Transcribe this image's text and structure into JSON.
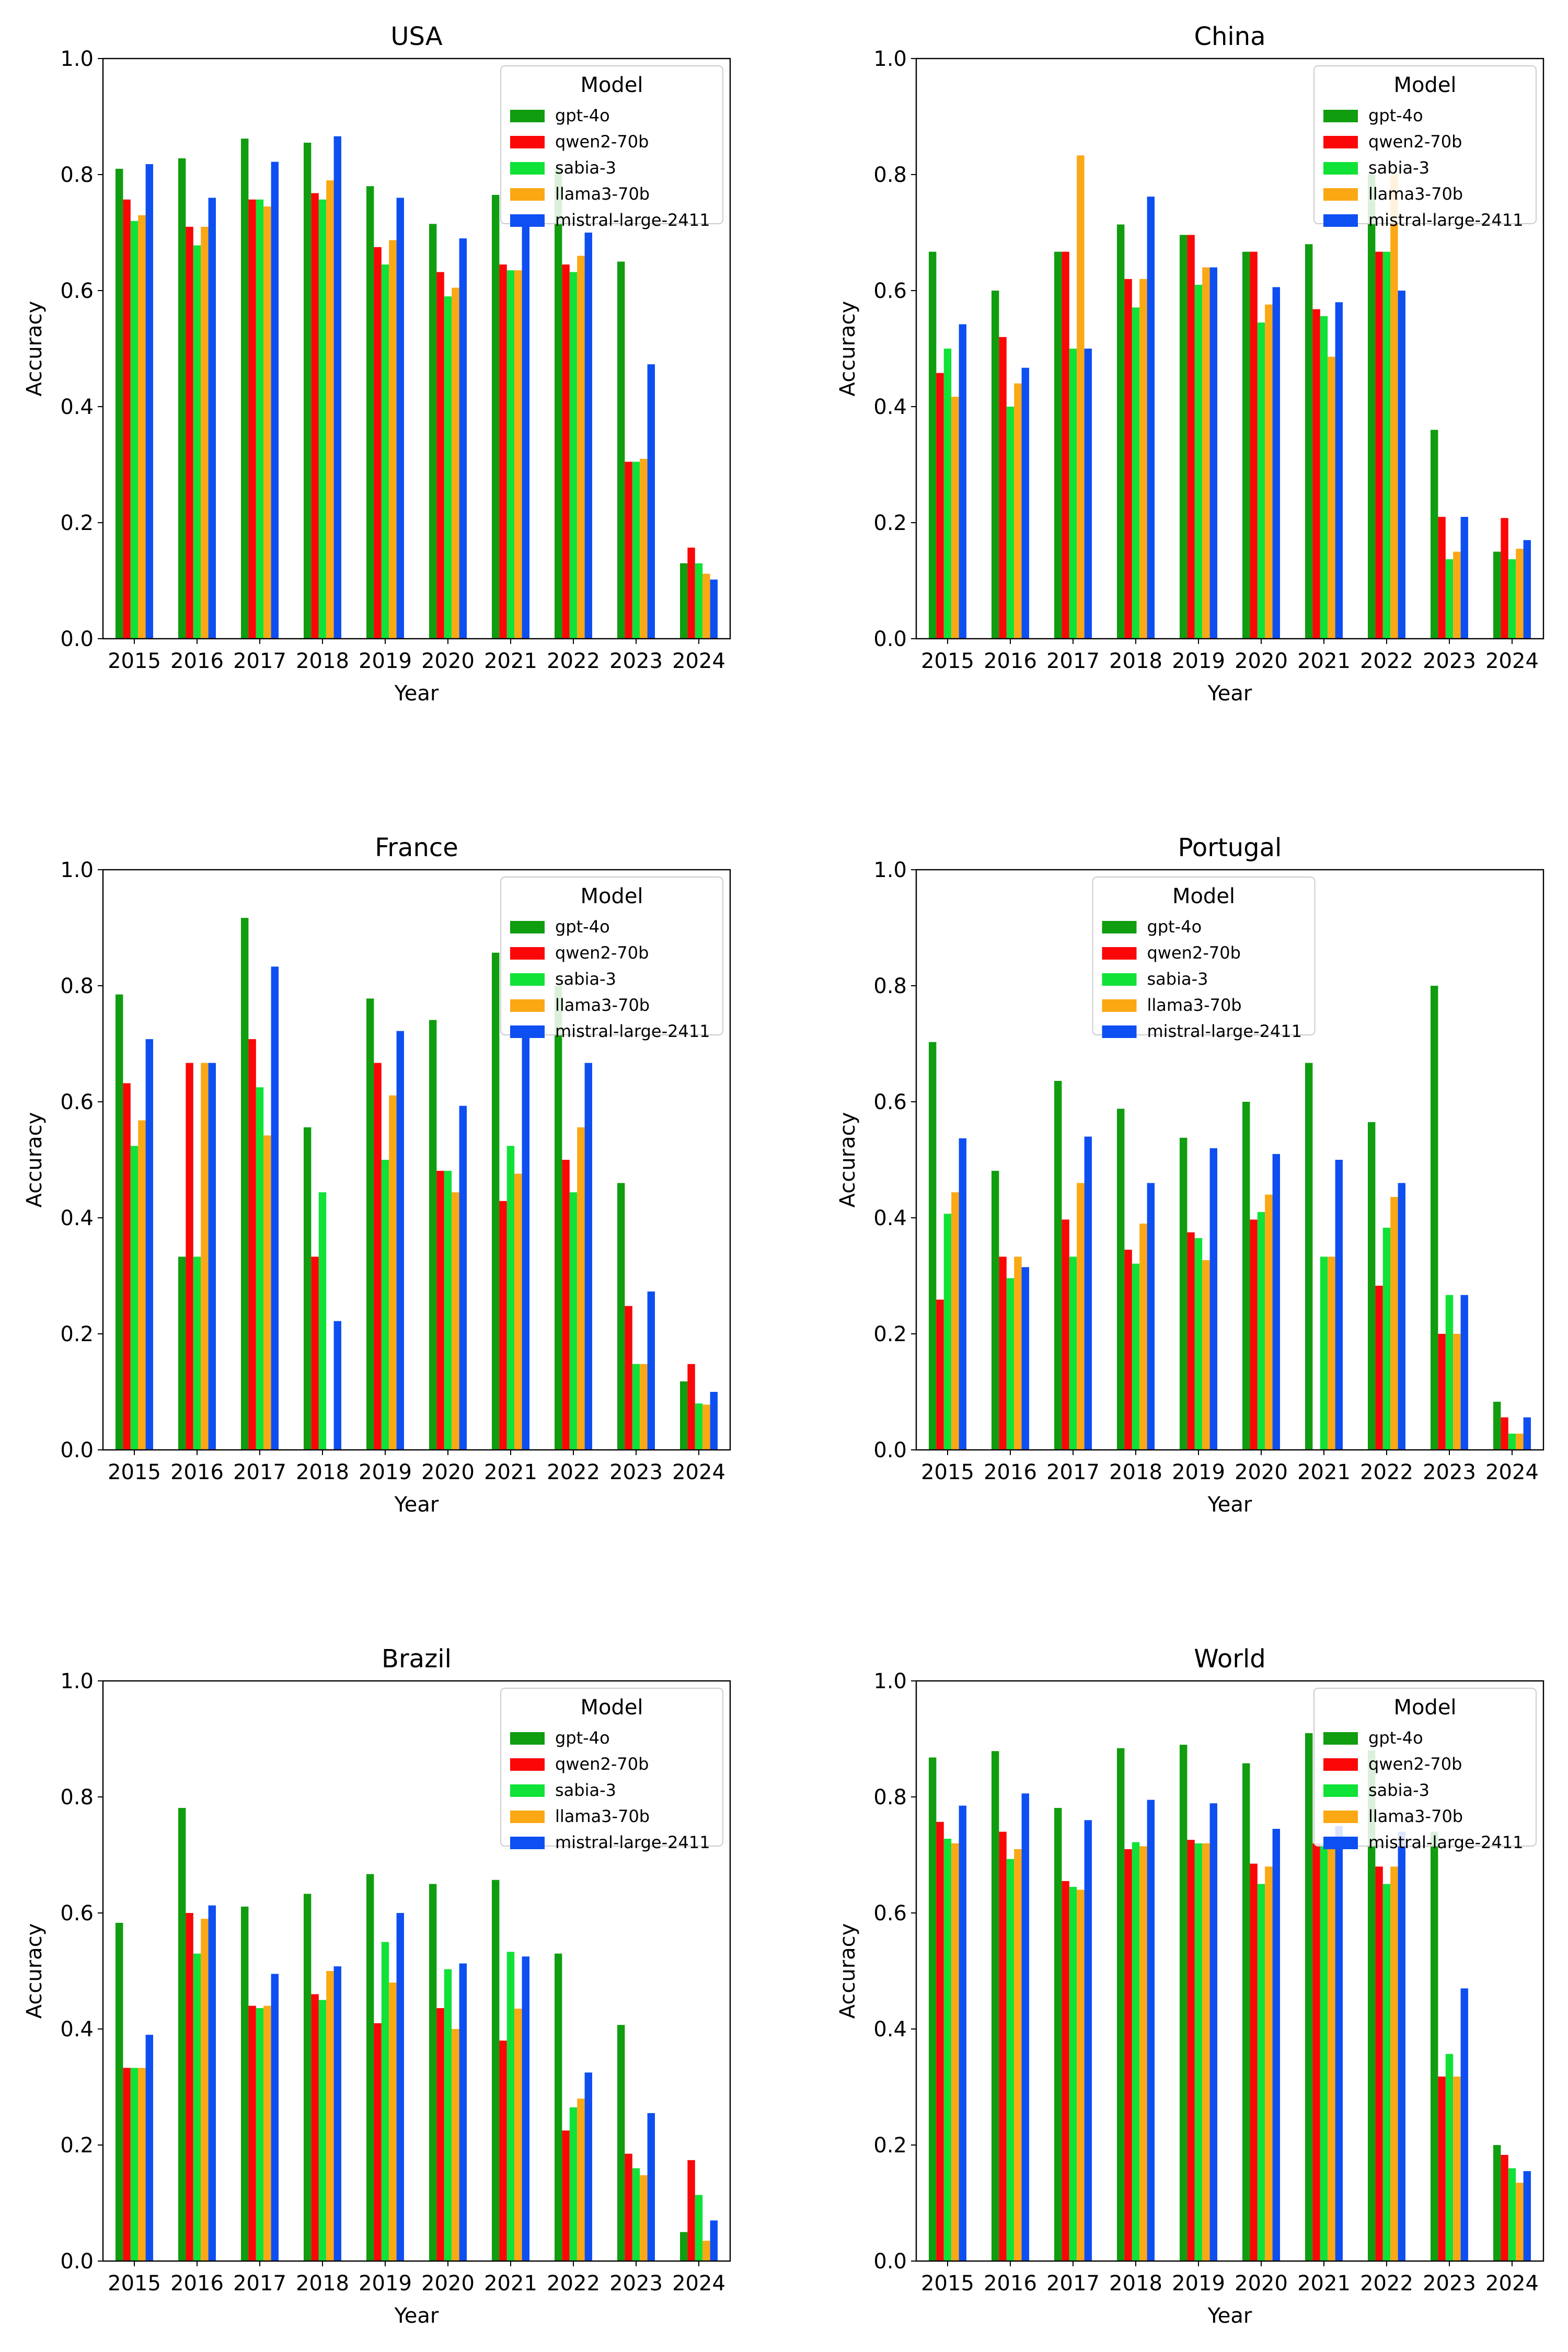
{
  "colors": {
    "gpt-4o": "#109d0f",
    "qwen2-70b": "#fb0708",
    "sabia-3": "#10e238",
    "llama3-70b": "#fba815",
    "mistral-large-2411": "#0e4ff2"
  },
  "chart_data": [
    {
      "type": "bar",
      "title": "USA",
      "xlabel": "Year",
      "ylabel": "Accuracy",
      "ylim": [
        0,
        1
      ],
      "yticks": [
        "0.0",
        "0.2",
        "0.4",
        "0.6",
        "0.8",
        "1.0"
      ],
      "categories": [
        "2015",
        "2016",
        "2017",
        "2018",
        "2019",
        "2020",
        "2021",
        "2022",
        "2023",
        "2024"
      ],
      "legend": {
        "title": "Model",
        "position": "upper-right"
      },
      "series": [
        {
          "name": "gpt-4o",
          "values": [
            0.81,
            0.828,
            0.862,
            0.855,
            0.78,
            0.715,
            0.765,
            0.81,
            0.65,
            0.13
          ]
        },
        {
          "name": "qwen2-70b",
          "values": [
            0.757,
            0.71,
            0.757,
            0.768,
            0.675,
            0.632,
            0.645,
            0.645,
            0.305,
            0.157
          ]
        },
        {
          "name": "sabia-3",
          "values": [
            0.72,
            0.678,
            0.757,
            0.757,
            0.645,
            0.59,
            0.635,
            0.632,
            0.305,
            0.13
          ]
        },
        {
          "name": "llama3-70b",
          "values": [
            0.73,
            0.71,
            0.745,
            0.79,
            0.687,
            0.605,
            0.635,
            0.66,
            0.31,
            0.112
          ]
        },
        {
          "name": "mistral-large-2411",
          "values": [
            0.818,
            0.76,
            0.822,
            0.866,
            0.76,
            0.69,
            0.72,
            0.7,
            0.473,
            0.102
          ]
        }
      ]
    },
    {
      "type": "bar",
      "title": "China",
      "xlabel": "Year",
      "ylabel": "Accuracy",
      "ylim": [
        0,
        1
      ],
      "yticks": [
        "0.0",
        "0.2",
        "0.4",
        "0.6",
        "0.8",
        "1.0"
      ],
      "categories": [
        "2015",
        "2016",
        "2017",
        "2018",
        "2019",
        "2020",
        "2021",
        "2022",
        "2023",
        "2024"
      ],
      "legend": {
        "title": "Model",
        "position": "upper-right"
      },
      "series": [
        {
          "name": "gpt-4o",
          "values": [
            0.667,
            0.6,
            0.667,
            0.714,
            0.696,
            0.667,
            0.68,
            0.8,
            0.36,
            0.15
          ]
        },
        {
          "name": "qwen2-70b",
          "values": [
            0.458,
            0.52,
            0.667,
            0.62,
            0.696,
            0.667,
            0.568,
            0.667,
            0.21,
            0.208
          ]
        },
        {
          "name": "sabia-3",
          "values": [
            0.5,
            0.4,
            0.5,
            0.571,
            0.61,
            0.545,
            0.556,
            0.667,
            0.137,
            0.137
          ]
        },
        {
          "name": "llama3-70b",
          "values": [
            0.417,
            0.44,
            0.833,
            0.62,
            0.64,
            0.576,
            0.486,
            0.8,
            0.15,
            0.155
          ]
        },
        {
          "name": "mistral-large-2411",
          "values": [
            0.542,
            0.467,
            0.5,
            0.762,
            0.64,
            0.606,
            0.58,
            0.6,
            0.21,
            0.17
          ]
        }
      ]
    },
    {
      "type": "bar",
      "title": "France",
      "xlabel": "Year",
      "ylabel": "Accuracy",
      "ylim": [
        0,
        1
      ],
      "yticks": [
        "0.0",
        "0.2",
        "0.4",
        "0.6",
        "0.8",
        "1.0"
      ],
      "categories": [
        "2015",
        "2016",
        "2017",
        "2018",
        "2019",
        "2020",
        "2021",
        "2022",
        "2023",
        "2024"
      ],
      "legend": {
        "title": "Model",
        "position": "upper-right"
      },
      "series": [
        {
          "name": "gpt-4o",
          "values": [
            0.785,
            0.333,
            0.917,
            0.556,
            0.778,
            0.741,
            0.857,
            0.8,
            0.46,
            0.118
          ]
        },
        {
          "name": "qwen2-70b",
          "values": [
            0.632,
            0.667,
            0.708,
            0.333,
            0.667,
            0.481,
            0.429,
            0.5,
            0.248,
            0.148
          ]
        },
        {
          "name": "sabia-3",
          "values": [
            0.524,
            0.333,
            0.625,
            0.444,
            0.5,
            0.481,
            0.524,
            0.444,
            0.148,
            0.08
          ]
        },
        {
          "name": "llama3-70b",
          "values": [
            0.568,
            0.667,
            0.542,
            0.0,
            0.611,
            0.444,
            0.476,
            0.556,
            0.148,
            0.078
          ]
        },
        {
          "name": "mistral-large-2411",
          "values": [
            0.708,
            0.667,
            0.833,
            0.222,
            0.722,
            0.593,
            0.71,
            0.667,
            0.273,
            0.1
          ]
        }
      ]
    },
    {
      "type": "bar",
      "title": "Portugal",
      "xlabel": "Year",
      "ylabel": "Accuracy",
      "ylim": [
        0,
        1
      ],
      "yticks": [
        "0.0",
        "0.2",
        "0.4",
        "0.6",
        "0.8",
        "1.0"
      ],
      "categories": [
        "2015",
        "2016",
        "2017",
        "2018",
        "2019",
        "2020",
        "2021",
        "2022",
        "2023",
        "2024"
      ],
      "legend": {
        "title": "Model",
        "position": "upper-center"
      },
      "series": [
        {
          "name": "gpt-4o",
          "values": [
            0.703,
            0.481,
            0.636,
            0.588,
            0.538,
            0.6,
            0.667,
            0.565,
            0.8,
            0.083
          ]
        },
        {
          "name": "qwen2-70b",
          "values": [
            0.259,
            0.333,
            0.397,
            0.345,
            0.375,
            0.397,
            0.0,
            0.283,
            0.2,
            0.056
          ]
        },
        {
          "name": "sabia-3",
          "values": [
            0.407,
            0.296,
            0.333,
            0.321,
            0.365,
            0.41,
            0.333,
            0.383,
            0.267,
            0.028
          ]
        },
        {
          "name": "llama3-70b",
          "values": [
            0.444,
            0.333,
            0.46,
            0.39,
            0.327,
            0.44,
            0.333,
            0.436,
            0.2,
            0.028
          ]
        },
        {
          "name": "mistral-large-2411",
          "values": [
            0.537,
            0.315,
            0.54,
            0.46,
            0.52,
            0.51,
            0.5,
            0.46,
            0.267,
            0.056
          ]
        }
      ]
    },
    {
      "type": "bar",
      "title": "Brazil",
      "xlabel": "Year",
      "ylabel": "Accuracy",
      "ylim": [
        0,
        1
      ],
      "yticks": [
        "0.0",
        "0.2",
        "0.4",
        "0.6",
        "0.8",
        "1.0"
      ],
      "categories": [
        "2015",
        "2016",
        "2017",
        "2018",
        "2019",
        "2020",
        "2021",
        "2022",
        "2023",
        "2024"
      ],
      "legend": {
        "title": "Model",
        "position": "upper-right"
      },
      "series": [
        {
          "name": "gpt-4o",
          "values": [
            0.583,
            0.781,
            0.611,
            0.633,
            0.667,
            0.65,
            0.657,
            0.53,
            0.407,
            0.05
          ]
        },
        {
          "name": "qwen2-70b",
          "values": [
            0.333,
            0.6,
            0.44,
            0.46,
            0.41,
            0.436,
            0.38,
            0.225,
            0.185,
            0.174
          ]
        },
        {
          "name": "sabia-3",
          "values": [
            0.333,
            0.53,
            0.436,
            0.45,
            0.55,
            0.503,
            0.533,
            0.265,
            0.16,
            0.114
          ]
        },
        {
          "name": "llama3-70b",
          "values": [
            0.333,
            0.59,
            0.44,
            0.5,
            0.48,
            0.4,
            0.435,
            0.28,
            0.148,
            0.035
          ]
        },
        {
          "name": "mistral-large-2411",
          "values": [
            0.39,
            0.613,
            0.495,
            0.508,
            0.6,
            0.513,
            0.525,
            0.325,
            0.255,
            0.07
          ]
        }
      ]
    },
    {
      "type": "bar",
      "title": "World",
      "xlabel": "Year",
      "ylabel": "Accuracy",
      "ylim": [
        0,
        1
      ],
      "yticks": [
        "0.0",
        "0.2",
        "0.4",
        "0.6",
        "0.8",
        "1.0"
      ],
      "categories": [
        "2015",
        "2016",
        "2017",
        "2018",
        "2019",
        "2020",
        "2021",
        "2022",
        "2023",
        "2024"
      ],
      "legend": {
        "title": "Model",
        "position": "upper-right"
      },
      "series": [
        {
          "name": "gpt-4o",
          "values": [
            0.868,
            0.879,
            0.781,
            0.884,
            0.89,
            0.858,
            0.91,
            0.88,
            0.74,
            0.2
          ]
        },
        {
          "name": "qwen2-70b",
          "values": [
            0.757,
            0.74,
            0.655,
            0.71,
            0.726,
            0.685,
            0.72,
            0.68,
            0.318,
            0.183
          ]
        },
        {
          "name": "sabia-3",
          "values": [
            0.728,
            0.693,
            0.645,
            0.722,
            0.72,
            0.65,
            0.72,
            0.65,
            0.357,
            0.16
          ]
        },
        {
          "name": "llama3-70b",
          "values": [
            0.72,
            0.71,
            0.64,
            0.715,
            0.72,
            0.68,
            0.72,
            0.68,
            0.318,
            0.135
          ]
        },
        {
          "name": "mistral-large-2411",
          "values": [
            0.785,
            0.806,
            0.76,
            0.795,
            0.789,
            0.745,
            0.75,
            0.74,
            0.47,
            0.155
          ]
        }
      ]
    }
  ]
}
